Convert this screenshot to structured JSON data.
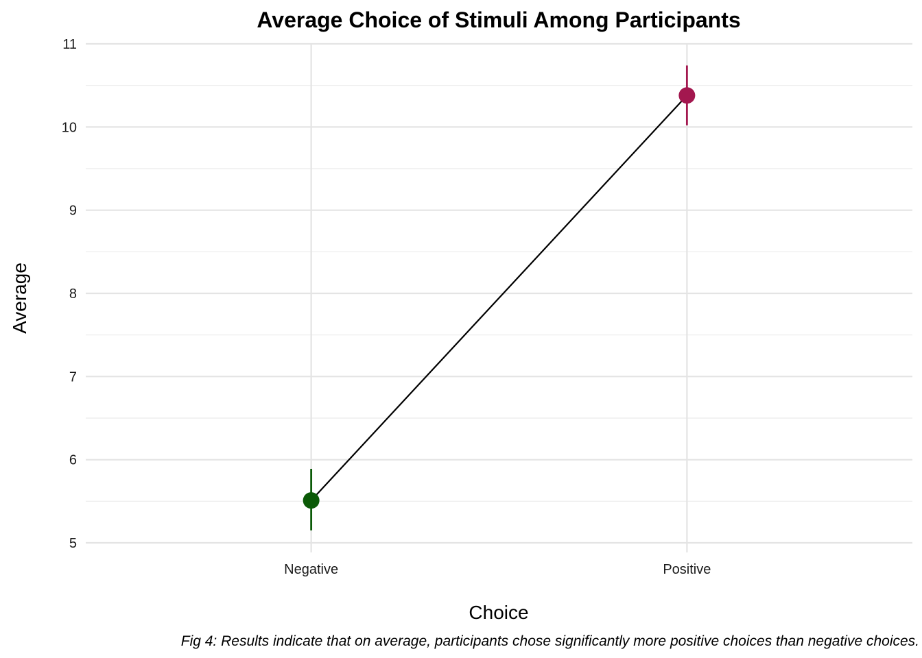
{
  "chart_data": {
    "type": "line",
    "title": "Average Choice of Stimuli Among Participants",
    "xlabel": "Choice",
    "ylabel": "Average",
    "caption": "Fig 4: Results indicate that on average, participants chose significantly more positive choices than negative choices.",
    "categories": [
      "Negative",
      "Positive"
    ],
    "values": [
      5.51,
      10.38
    ],
    "error_low": [
      5.15,
      10.02
    ],
    "error_high": [
      5.89,
      10.74
    ],
    "point_colors": [
      "#0b5a07",
      "#a3174f"
    ],
    "line_color": "#000000",
    "ylim": [
      5,
      11
    ],
    "yticks": [
      5,
      6,
      7,
      8,
      9,
      10,
      11
    ],
    "grid": true,
    "legend": "none"
  }
}
